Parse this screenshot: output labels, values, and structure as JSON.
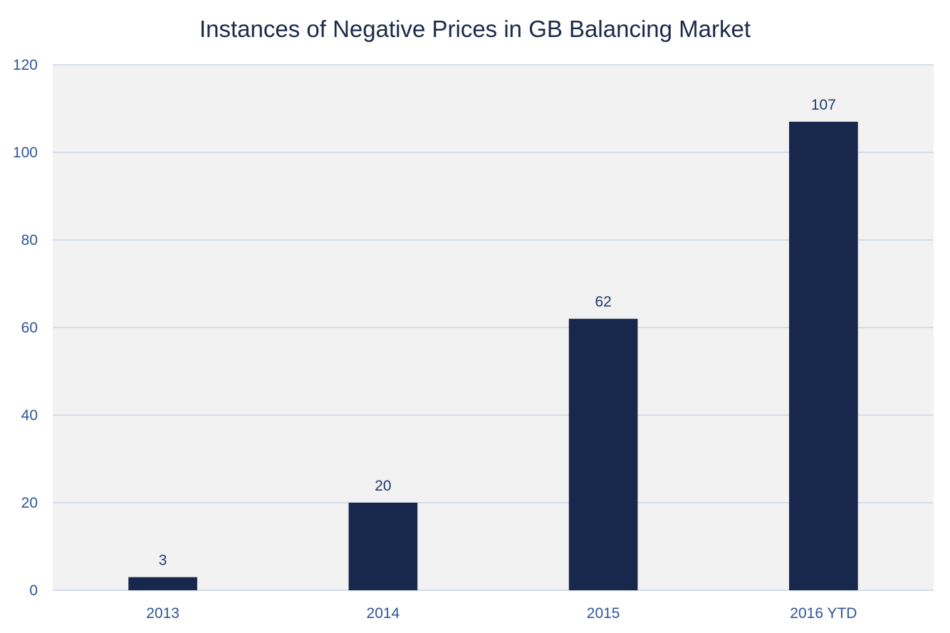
{
  "chart_data": {
    "type": "bar",
    "title": "Instances of Negative Prices in GB Balancing Market",
    "categories": [
      "2013",
      "2014",
      "2015",
      "2016 YTD"
    ],
    "values": [
      3,
      20,
      62,
      107
    ],
    "data_labels": [
      "3",
      "20",
      "62",
      "107"
    ],
    "xlabel": "",
    "ylabel": "",
    "ylim": [
      0,
      120
    ],
    "yticks": [
      "0",
      "20",
      "40",
      "60",
      "80",
      "100",
      "120"
    ],
    "grid": true,
    "legend": "none"
  },
  "colors": {
    "bar": "#18284c",
    "plot_background": "#f2f2f2",
    "gridline": "#c9d6e8",
    "axis_text": "#2f5597",
    "label_text": "#1f3b6e",
    "title_text": "#1b2a4a"
  }
}
